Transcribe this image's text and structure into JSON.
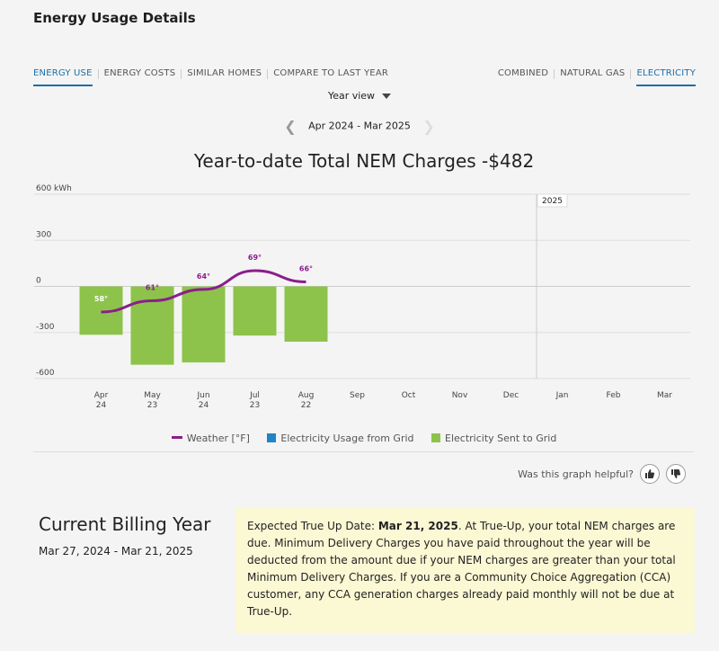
{
  "page": {
    "title": "Energy Usage Details"
  },
  "tabs_left": [
    "ENERGY USE",
    "ENERGY COSTS",
    "SIMILAR HOMES",
    "COMPARE TO LAST YEAR"
  ],
  "tabs_right": [
    "COMBINED",
    "NATURAL GAS",
    "ELECTRICITY"
  ],
  "view_selector": {
    "label": "Year view"
  },
  "date_range": {
    "label": "Apr 2024 - Mar 2025"
  },
  "chart_data": {
    "type": "bar",
    "title": "Year-to-date Total NEM Charges -$482",
    "ylabel": "kWh",
    "y_tick_labels": [
      "600 kWh",
      "300",
      "0",
      "-300",
      "-600"
    ],
    "y_ticks": [
      600,
      300,
      0,
      -300,
      -600
    ],
    "ylim": [
      -600,
      600
    ],
    "x_ticks": [
      {
        "month": "Apr",
        "day": "24"
      },
      {
        "month": "May",
        "day": "23"
      },
      {
        "month": "Jun",
        "day": "24"
      },
      {
        "month": "Jul",
        "day": "23"
      },
      {
        "month": "Aug",
        "day": "22"
      },
      {
        "month": "Sep",
        "day": ""
      },
      {
        "month": "Oct",
        "day": ""
      },
      {
        "month": "Nov",
        "day": ""
      },
      {
        "month": "Dec",
        "day": ""
      },
      {
        "month": "Jan",
        "day": ""
      },
      {
        "month": "Feb",
        "day": ""
      },
      {
        "month": "Mar",
        "day": ""
      }
    ],
    "year_marker": {
      "label": "2025",
      "before_index": 9
    },
    "series": [
      {
        "name": "Electricity Usage from Grid",
        "color": "#1f85c6",
        "values": [
          0,
          0,
          0,
          0,
          0,
          null,
          null,
          null,
          null,
          null,
          null,
          null
        ]
      },
      {
        "name": "Electricity Sent to Grid",
        "color": "#8dc34a",
        "values": [
          -315,
          -510,
          -495,
          -320,
          -360,
          null,
          null,
          null,
          null,
          null,
          null,
          null
        ]
      }
    ],
    "weather": {
      "name": "Weather [°F]",
      "color": "#8b1e8b",
      "labels": [
        "58°",
        "61°",
        "64°",
        "69°",
        "66°"
      ],
      "values": [
        58,
        61,
        64,
        69,
        66
      ]
    }
  },
  "feedback": {
    "question": "Was this graph helpful?"
  },
  "billing": {
    "title": "Current Billing Year",
    "dates": "Mar 27, 2024 - Mar 21, 2025",
    "notice_lead": "Expected True Up Date: ",
    "notice_date": "Mar 21, 2025",
    "notice_text": ". At True-Up, your total NEM charges are due. Minimum Delivery Charges you have paid throughout the year will be deducted from the amount due if your NEM charges are greater than your total Minimum Delivery Charges. If you are a Community Choice Aggregation (CCA) customer, any CCA generation charges already paid monthly will not be due at True-Up."
  },
  "colors": {
    "accent": "#1a6fa8",
    "sent": "#8dc34a",
    "usage": "#1f85c6",
    "weather": "#8b1e8b",
    "notice_bg": "#fbf8d4"
  }
}
